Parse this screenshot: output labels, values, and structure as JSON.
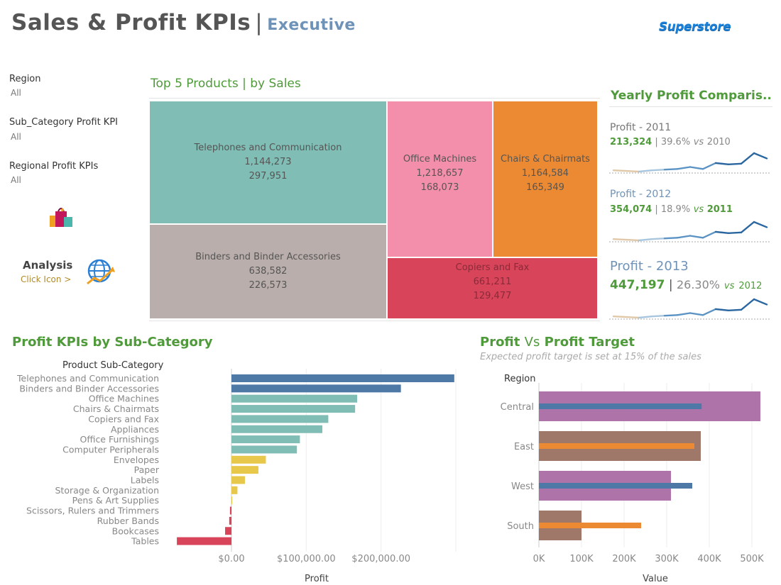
{
  "header": {
    "title": "Sales & Profit KPIs",
    "separator": "|",
    "subtitle": "Executive",
    "logo_text": "Superstore"
  },
  "filters": [
    {
      "label": "Region",
      "value": "All"
    },
    {
      "label": "Sub_Category Profit KPI",
      "value": "All"
    },
    {
      "label": "Regional Profit KPIs",
      "value": "All"
    }
  ],
  "analysis": {
    "title": "Analysis",
    "link": "Click Icon >"
  },
  "icons": {
    "shopping": "shopping-bags-icon",
    "globe": "globe-analytics-icon"
  },
  "treemap": {
    "title": "Top 5 Products | by Sales",
    "cells": [
      {
        "name": "Telephones and Communication",
        "sales": "1,144,273",
        "profit": "297,951",
        "color": "#80bdb4"
      },
      {
        "name": "Binders and Binder Accessories",
        "sales": "638,582",
        "profit": "226,573",
        "color": "#b9aeab"
      },
      {
        "name": "Office Machines",
        "sales": "1,218,657",
        "profit": "168,073",
        "color": "#f48fab"
      },
      {
        "name": "Chairs & Chairmats",
        "sales": "1,164,584",
        "profit": "165,349",
        "color": "#eb8a33"
      },
      {
        "name": "Copiers and Fax",
        "sales": "661,211",
        "profit": "129,477",
        "color": "#d8455a"
      }
    ]
  },
  "yearly": {
    "title": "Yearly Profit Comparis..",
    "items": [
      {
        "label": "Profit - 2011",
        "value": "213,324",
        "pct": "39.6%",
        "vs": "vs",
        "vs_year": "2010"
      },
      {
        "label": "Profit - 2012",
        "value": "354,074",
        "pct": "18.9%",
        "vs": "vs",
        "vs_year": "2011"
      },
      {
        "label": "Profit - 2013",
        "value": "447,197",
        "pct": "26.30%",
        "vs": "vs",
        "vs_year": "2012"
      }
    ],
    "sparkline": [
      3,
      2.5,
      2,
      3,
      3.5,
      4,
      5.5,
      4,
      8.5,
      7.5,
      8,
      16,
      12
    ]
  },
  "subcat": {
    "title": "Profit KPIs by Sub-Category",
    "header_label": "Product Sub-Category"
  },
  "target": {
    "title_a": "Profit",
    "title_vs": "Vs",
    "title_b": "Profit Target",
    "subtitle": "Expected profit target is set at 15% of the sales",
    "header_label": "Region"
  },
  "colors": {
    "green": "#4f9a3a",
    "blue": "#4e79a7",
    "teal": "#80bdb4",
    "yellow": "#e8c84b",
    "red": "#d8455a",
    "purple": "#a565a0",
    "brown": "#96695a",
    "orange": "#eb8a33"
  },
  "chart_data": [
    {
      "type": "bar",
      "title": "Profit KPIs by Sub-Category",
      "xlabel": "Profit",
      "ylabel": "Product Sub-Category",
      "xlim": [
        -80000,
        310000
      ],
      "xticks": [
        "$0.00",
        "$100,000.00",
        "$200,000.00"
      ],
      "categories": [
        "Telephones and Communication",
        "Binders and Binder Accessories",
        "Office Machines",
        "Chairs & Chairmats",
        "Copiers and Fax",
        "Appliances",
        "Office Furnishings",
        "Computer Peripherals",
        "Envelopes",
        "Paper",
        "Labels",
        "Storage & Organization",
        "Pens & Art Supplies",
        "Scissors, Rulers and Trimmers",
        "Rubber Bands",
        "Bookcases",
        "Tables"
      ],
      "values": [
        297951,
        226573,
        168073,
        165349,
        129477,
        121500,
        91500,
        87500,
        46000,
        36000,
        18000,
        8000,
        1000,
        -2000,
        -3000,
        -8500,
        -73000
      ],
      "kpi": [
        "top",
        "top",
        "high",
        "high",
        "high",
        "high",
        "high",
        "high",
        "mid",
        "mid",
        "mid",
        "mid",
        "mid",
        "low",
        "low",
        "low",
        "low"
      ]
    },
    {
      "type": "bar",
      "title": "Profit Vs Profit Target",
      "xlabel": "Value",
      "ylabel": "Region",
      "xlim": [
        -15000,
        540000
      ],
      "xticks": [
        "0K",
        "100K",
        "200K",
        "300K",
        "400K",
        "500K"
      ],
      "categories": [
        "Central",
        "East",
        "West",
        "South"
      ],
      "series": [
        {
          "name": "Profit Target",
          "values": [
            520000,
            380000,
            310000,
            100000
          ]
        },
        {
          "name": "Profit",
          "values": [
            382000,
            365000,
            360000,
            240000
          ]
        }
      ],
      "target_met": [
        true,
        false,
        true,
        false
      ]
    }
  ]
}
